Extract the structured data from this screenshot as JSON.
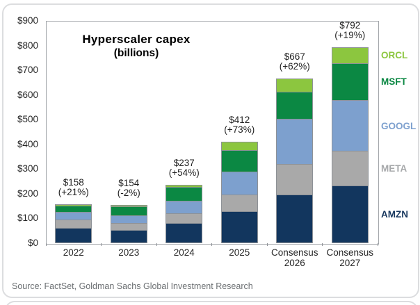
{
  "title": {
    "line1": "Hyperscaler capex",
    "line2": "(billions)"
  },
  "source_text": "Source: FactSet, Goldman Sachs Global Investment Research",
  "chart_data": {
    "type": "bar",
    "stacked": true,
    "title": "Hyperscaler capex",
    "subtitle": "(billions)",
    "unit": "USD billions",
    "grid": false,
    "legend_position": "right-of-plot",
    "ylim": [
      0,
      900
    ],
    "ytick_step": 100,
    "yticks": [
      "$0",
      "$100",
      "$200",
      "$300",
      "$400",
      "$500",
      "$600",
      "$700",
      "$800",
      "$900"
    ],
    "categories": [
      "2022",
      "2023",
      "2024",
      "2025",
      "Consensus\n2026",
      "Consensus\n2027"
    ],
    "totals": [
      {
        "value": 158,
        "label": "$158",
        "change": "(+21%)"
      },
      {
        "value": 154,
        "label": "$154",
        "change": "(-2%)"
      },
      {
        "value": 237,
        "label": "$237",
        "change": "(+54%)"
      },
      {
        "value": 412,
        "label": "$412",
        "change": "(+73%)"
      },
      {
        "value": 667,
        "label": "$667",
        "change": "(+62%)"
      },
      {
        "value": 792,
        "label": "$792",
        "change": "(+19%)"
      }
    ],
    "series": [
      {
        "name": "AMZN",
        "color": "#12365E",
        "legend_color": "#17375E",
        "values": [
          60,
          51,
          78,
          126,
          195,
          231
        ]
      },
      {
        "name": "META",
        "color": "#A9A9A9",
        "legend_color": "#A6A8AA",
        "values": [
          33,
          29,
          41,
          68,
          123,
          139
        ]
      },
      {
        "name": "GOOGL",
        "color": "#7DA0CE",
        "legend_color": "#7DA0CE",
        "values": [
          30,
          31,
          49,
          93,
          184,
          207
        ]
      },
      {
        "name": "MSFT",
        "color": "#0B8843",
        "legend_color": "#0A8742",
        "values": [
          26,
          36,
          57,
          88,
          108,
          149
        ]
      },
      {
        "name": "ORCL",
        "color": "#8CC63F",
        "legend_color": "#8CC63F",
        "values": [
          9,
          7,
          12,
          37,
          57,
          66
        ]
      }
    ]
  }
}
